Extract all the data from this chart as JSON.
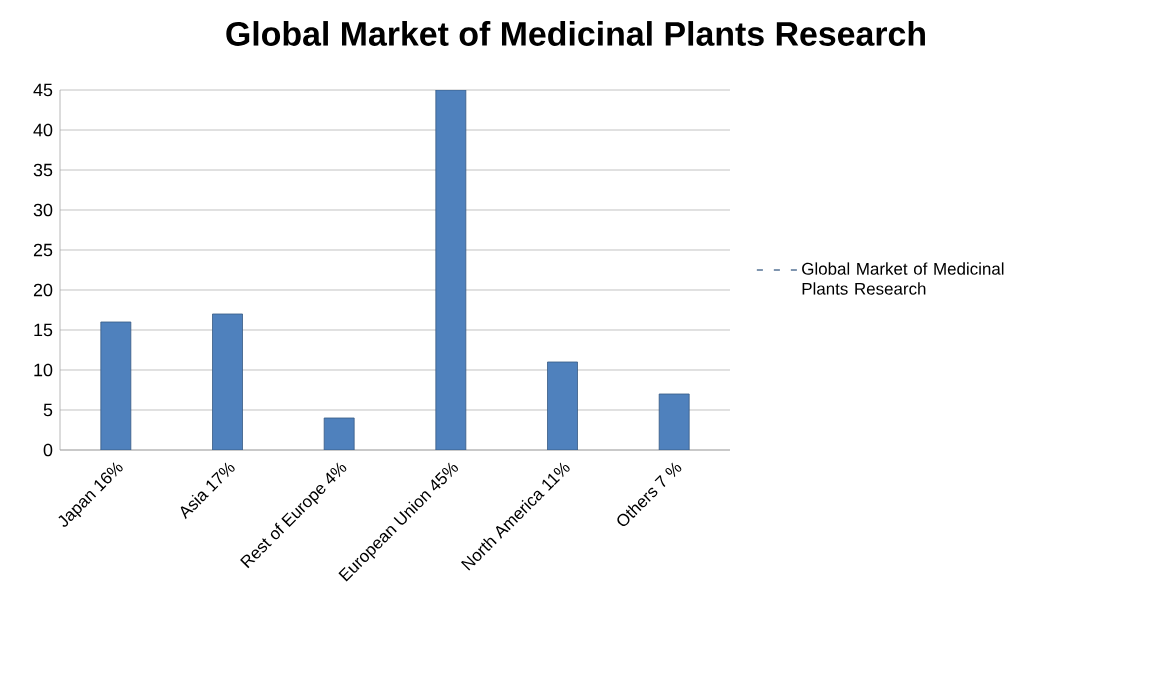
{
  "chart_data": {
    "type": "bar",
    "title": "Global Market of Medicinal Plants Research",
    "categories": [
      "Japan 16%",
      "Asia 17%",
      "Rest of Europe 4%",
      "European Union 45%",
      "North America 11%",
      "Others 7 %"
    ],
    "series": [
      {
        "name": "Global Market of Medicinal Plants Research",
        "color": "#4f81bd",
        "values": [
          16,
          17,
          4,
          45,
          11,
          7
        ]
      }
    ],
    "ylim": [
      0,
      45
    ],
    "yticks": [
      0,
      5,
      10,
      15,
      20,
      25,
      30,
      35,
      40,
      45
    ],
    "grid": "y",
    "legend": "right"
  }
}
